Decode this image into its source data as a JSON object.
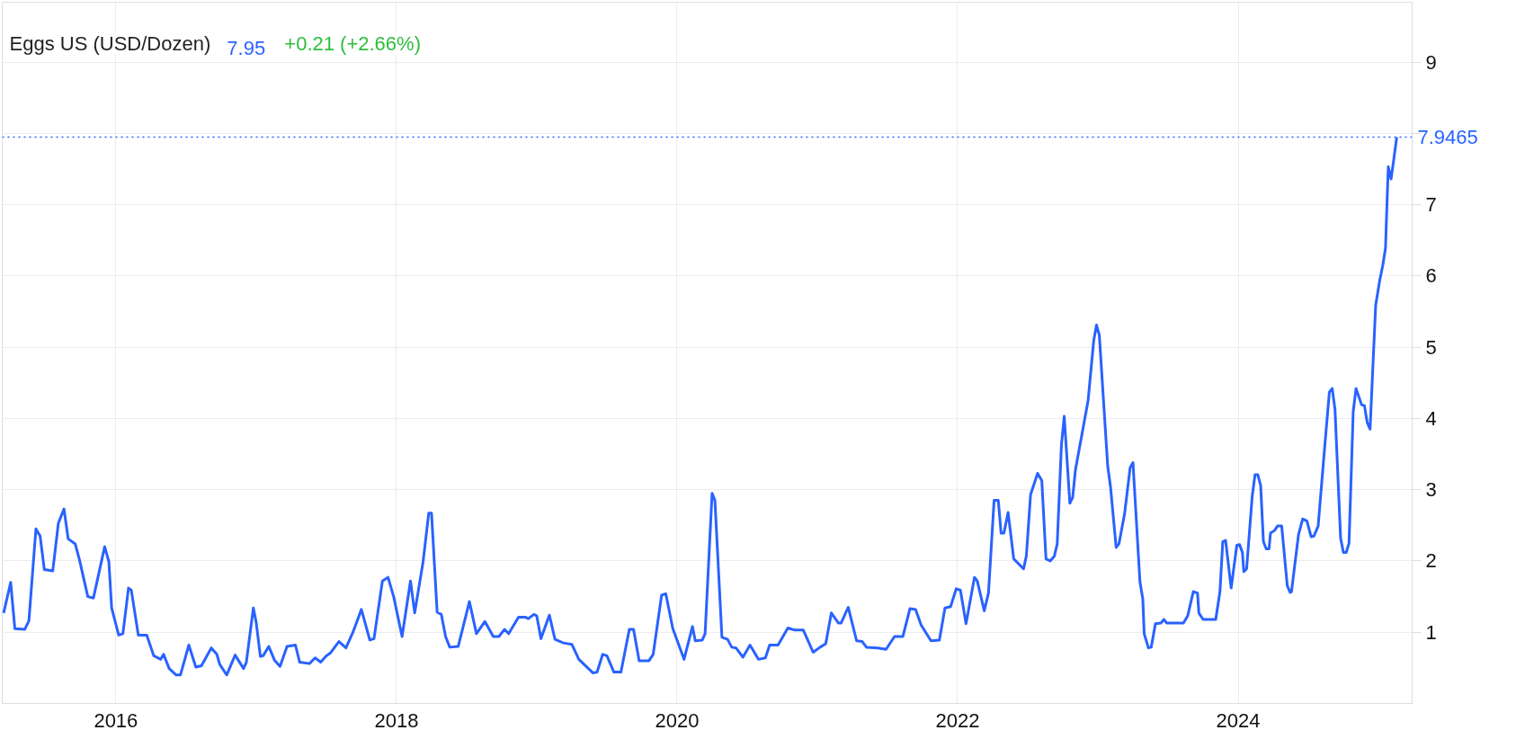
{
  "chart_data": {
    "type": "line",
    "title": "Eggs US (USD/Dozen)",
    "annotations": [
      "7.95",
      "+0.21 (+2.66%)"
    ],
    "xlim": [
      2015.19,
      2025.24
    ],
    "xticks": [
      2016,
      2018,
      2020,
      2022,
      2024
    ],
    "ylim": [
      0,
      9.84
    ],
    "yticks": [
      1,
      2,
      3,
      4,
      5,
      6,
      7,
      {
        "value": 8,
        "label": null
      },
      9
    ],
    "grid": true,
    "marker": "none",
    "line_style": "solid",
    "ref_lines": [
      {
        "axis": "y",
        "value": 7.9465,
        "label": "7.9465",
        "color": "#2962ff",
        "line_style": "dotted"
      }
    ],
    "series": [
      {
        "color": "#2962ff",
        "x": [
          2015.2,
          2015.25,
          2015.28,
          2015.35,
          2015.38,
          2015.43,
          2015.46,
          2015.49,
          2015.55,
          2015.59,
          2015.63,
          2015.66,
          2015.71,
          2015.74,
          2015.8,
          2015.84,
          2015.92,
          2015.95,
          2015.97,
          2016.02,
          2016.05,
          2016.09,
          2016.11,
          2016.16,
          2016.22,
          2016.27,
          2016.32,
          2016.34,
          2016.38,
          2016.43,
          2016.46,
          2016.52,
          2016.57,
          2016.61,
          2016.68,
          2016.72,
          2016.74,
          2016.79,
          2016.85,
          2016.91,
          2016.93,
          2016.98,
          2017.0,
          2017.03,
          2017.05,
          2017.09,
          2017.13,
          2017.17,
          2017.22,
          2017.28,
          2017.31,
          2017.38,
          2017.42,
          2017.46,
          2017.5,
          2017.53,
          2017.59,
          2017.64,
          2017.69,
          2017.75,
          2017.81,
          2017.84,
          2017.9,
          2017.94,
          2017.98,
          2018.04,
          2018.1,
          2018.13,
          2018.19,
          2018.23,
          2018.25,
          2018.29,
          2018.32,
          2018.35,
          2018.38,
          2018.44,
          2018.52,
          2018.57,
          2018.63,
          2018.69,
          2018.73,
          2018.77,
          2018.8,
          2018.87,
          2018.92,
          2018.94,
          2018.98,
          2019.0,
          2019.03,
          2019.09,
          2019.13,
          2019.19,
          2019.25,
          2019.3,
          2019.4,
          2019.43,
          2019.47,
          2019.5,
          2019.55,
          2019.6,
          2019.66,
          2019.69,
          2019.73,
          2019.8,
          2019.83,
          2019.89,
          2019.92,
          2019.97,
          2020.05,
          2020.11,
          2020.13,
          2020.18,
          2020.2,
          2020.25,
          2020.27,
          2020.32,
          2020.36,
          2020.39,
          2020.42,
          2020.47,
          2020.52,
          2020.58,
          2020.63,
          2020.66,
          2020.72,
          2020.79,
          2020.84,
          2020.9,
          2020.97,
          2021.02,
          2021.06,
          2021.1,
          2021.15,
          2021.17,
          2021.22,
          2021.28,
          2021.32,
          2021.35,
          2021.43,
          2021.49,
          2021.55,
          2021.61,
          2021.66,
          2021.7,
          2021.74,
          2021.81,
          2021.87,
          2021.91,
          2021.95,
          2021.99,
          2022.02,
          2022.06,
          2022.12,
          2022.14,
          2022.19,
          2022.22,
          2022.26,
          2022.29,
          2022.31,
          2022.33,
          2022.36,
          2022.4,
          2022.47,
          2022.49,
          2022.52,
          2022.57,
          2022.6,
          2022.63,
          2022.66,
          2022.69,
          2022.71,
          2022.74,
          2022.76,
          2022.8,
          2022.82,
          2022.84,
          2022.93,
          2022.97,
          2022.99,
          2023.01,
          2023.07,
          2023.09,
          2023.13,
          2023.15,
          2023.19,
          2023.23,
          2023.25,
          2023.26,
          2023.3,
          2023.32,
          2023.33,
          2023.36,
          2023.38,
          2023.41,
          2023.45,
          2023.47,
          2023.49,
          2023.61,
          2023.64,
          2023.68,
          2023.71,
          2023.72,
          2023.75,
          2023.84,
          2023.87,
          2023.89,
          2023.91,
          2023.95,
          2023.99,
          2024.01,
          2024.03,
          2024.04,
          2024.06,
          2024.1,
          2024.12,
          2024.14,
          2024.16,
          2024.18,
          2024.2,
          2024.22,
          2024.23,
          2024.26,
          2024.28,
          2024.31,
          2024.35,
          2024.37,
          2024.38,
          2024.43,
          2024.46,
          2024.49,
          2024.52,
          2024.54,
          2024.57,
          2024.62,
          2024.65,
          2024.67,
          2024.69,
          2024.73,
          2024.75,
          2024.77,
          2024.79,
          2024.82,
          2024.84,
          2024.88,
          2024.9,
          2024.92,
          2024.94,
          2024.98,
          2025.01,
          2025.03,
          2025.05,
          2025.06,
          2025.07,
          2025.09,
          2025.11,
          2025.13
        ],
        "values": [
          1.27,
          1.7,
          1.05,
          1.04,
          1.16,
          2.45,
          2.35,
          1.88,
          1.86,
          2.53,
          2.73,
          2.31,
          2.24,
          2.02,
          1.5,
          1.48,
          2.2,
          1.99,
          1.34,
          0.96,
          0.98,
          1.62,
          1.59,
          0.96,
          0.96,
          0.67,
          0.62,
          0.69,
          0.49,
          0.4,
          0.4,
          0.82,
          0.51,
          0.53,
          0.78,
          0.69,
          0.55,
          0.4,
          0.68,
          0.49,
          0.58,
          1.34,
          1.14,
          0.66,
          0.67,
          0.8,
          0.61,
          0.52,
          0.8,
          0.82,
          0.58,
          0.56,
          0.64,
          0.58,
          0.67,
          0.71,
          0.87,
          0.78,
          1.0,
          1.32,
          0.89,
          0.91,
          1.72,
          1.77,
          1.5,
          0.94,
          1.72,
          1.27,
          1.99,
          2.67,
          2.67,
          1.28,
          1.25,
          0.94,
          0.79,
          0.8,
          1.43,
          0.98,
          1.15,
          0.94,
          0.94,
          1.04,
          0.98,
          1.21,
          1.21,
          1.19,
          1.25,
          1.23,
          0.91,
          1.24,
          0.9,
          0.85,
          0.83,
          0.62,
          0.43,
          0.44,
          0.69,
          0.67,
          0.44,
          0.44,
          1.04,
          1.04,
          0.6,
          0.6,
          0.69,
          1.52,
          1.54,
          1.05,
          0.62,
          1.08,
          0.88,
          0.89,
          0.98,
          2.95,
          2.85,
          0.93,
          0.9,
          0.79,
          0.78,
          0.65,
          0.82,
          0.62,
          0.64,
          0.82,
          0.82,
          1.06,
          1.03,
          1.03,
          0.72,
          0.79,
          0.84,
          1.27,
          1.13,
          1.13,
          1.35,
          0.88,
          0.87,
          0.79,
          0.78,
          0.76,
          0.94,
          0.94,
          1.33,
          1.32,
          1.1,
          0.88,
          0.89,
          1.34,
          1.36,
          1.61,
          1.59,
          1.12,
          1.77,
          1.72,
          1.3,
          1.55,
          2.85,
          2.85,
          2.39,
          2.39,
          2.68,
          2.03,
          1.89,
          2.07,
          2.93,
          3.23,
          3.13,
          2.03,
          2.0,
          2.07,
          2.24,
          3.63,
          4.03,
          2.81,
          2.89,
          3.28,
          4.25,
          5.09,
          5.31,
          5.17,
          3.33,
          3.04,
          2.19,
          2.24,
          2.66,
          3.31,
          3.38,
          3.04,
          1.7,
          1.47,
          0.98,
          0.78,
          0.79,
          1.12,
          1.13,
          1.18,
          1.13,
          1.13,
          1.23,
          1.57,
          1.55,
          1.27,
          1.18,
          1.18,
          1.57,
          2.27,
          2.29,
          1.62,
          2.22,
          2.23,
          2.12,
          1.85,
          1.89,
          2.91,
          3.21,
          3.21,
          3.06,
          2.27,
          2.17,
          2.17,
          2.39,
          2.43,
          2.49,
          2.49,
          1.65,
          1.56,
          1.57,
          2.37,
          2.59,
          2.56,
          2.34,
          2.35,
          2.49,
          3.68,
          4.37,
          4.42,
          4.13,
          2.32,
          2.12,
          2.12,
          2.25,
          4.1,
          4.42,
          4.19,
          4.18,
          3.94,
          3.85,
          5.59,
          5.95,
          6.14,
          6.39,
          6.98,
          7.53,
          7.36,
          7.65,
          7.9465
        ]
      }
    ]
  }
}
